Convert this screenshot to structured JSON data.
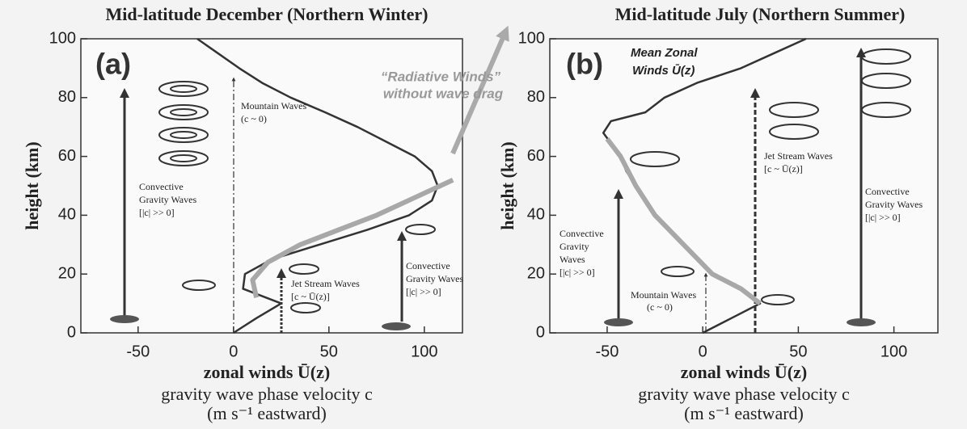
{
  "chart_data": [
    {
      "type": "line",
      "title": "Mid-latitude December (Northern Winter)",
      "panel_label": "(a)",
      "ylabel": "height (km)",
      "xlabel": [
        "zonal winds Ū(z)",
        "gravity wave phase velocity c",
        "(m s⁻¹ eastward)"
      ],
      "xlim": [
        -80,
        120
      ],
      "xticks": [
        -50,
        0,
        50,
        100
      ],
      "ylim": [
        0,
        100
      ],
      "yticks": [
        0,
        20,
        40,
        60,
        80,
        100
      ],
      "series": [
        {
          "color": "#333333",
          "x": [
            0,
            12,
            25,
            5,
            6,
            20,
            45,
            70,
            92,
            104,
            107,
            104,
            95,
            80,
            65,
            48,
            30,
            15,
            3,
            -8,
            -19
          ],
          "y": [
            0,
            5,
            10,
            15,
            20,
            25,
            30,
            35,
            40,
            45,
            50,
            55,
            60,
            65,
            70,
            75,
            80,
            85,
            90,
            95,
            100
          ]
        },
        {
          "color": "#a8a8a8",
          "x": [
            12,
            10,
            18,
            35,
            55,
            75,
            95,
            115
          ],
          "y": [
            12,
            18,
            24,
            30,
            35,
            40,
            46,
            52
          ]
        }
      ],
      "annotations": [
        "Mountain Waves",
        "(c ~ 0)",
        "Convective",
        "Gravity Waves",
        "[|c| >> 0]",
        "Jet Stream Waves",
        "[c ~ Ū(z)]",
        "Convective",
        "Gravity Waves",
        "[|c| >> 0]",
        "“Radiative Winds”",
        "without wave drag"
      ]
    },
    {
      "type": "line",
      "title": "Mid-latitude  July (Northern Summer)",
      "panel_label": "(b)",
      "ylabel": "height (km)",
      "xlabel": [
        "zonal winds Ū(z)",
        "gravity wave phase velocity c",
        "(m s⁻¹ eastward)"
      ],
      "xlim": [
        -80,
        123
      ],
      "xticks": [
        -50,
        0,
        50,
        100
      ],
      "ylim": [
        0,
        100
      ],
      "yticks": [
        0,
        20,
        40,
        60,
        80,
        100
      ],
      "series": [
        {
          "color": "#333333",
          "x": [
            0,
            15,
            30,
            20,
            5,
            -3,
            -10,
            -18,
            -25,
            -30,
            -35,
            -40,
            -43,
            -52,
            -48,
            -30,
            -20,
            -3,
            20,
            37,
            54
          ],
          "y": [
            0,
            5,
            10,
            15,
            20,
            25,
            30,
            35,
            40,
            45,
            50,
            55,
            60,
            68,
            72,
            75,
            80,
            85,
            90,
            95,
            100
          ]
        },
        {
          "color": "#a8a8a8",
          "x": [
            30,
            20,
            5,
            -10,
            -25,
            -35,
            -43,
            -50
          ],
          "y": [
            10,
            15,
            20,
            30,
            40,
            50,
            60,
            66
          ]
        }
      ],
      "annotations": [
        "Mean Zonal",
        "Winds Ū(z)",
        "Jet Stream Waves",
        "[c ~ Ū(z)]",
        "Convective",
        "Gravity Waves",
        "[|c| >> 0]",
        "Convective",
        "Gravity",
        "Waves",
        "[|c| >> 0]",
        "Mountain Waves",
        "(c ~ 0)"
      ]
    }
  ]
}
